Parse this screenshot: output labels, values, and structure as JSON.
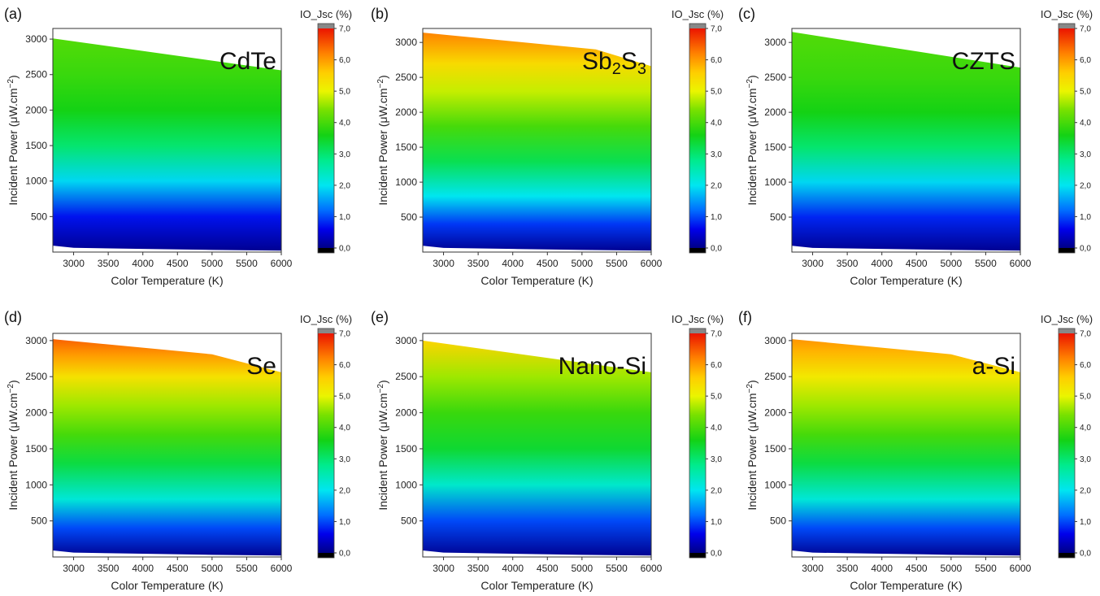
{
  "chart_data": [
    {
      "type": "heatmap",
      "panel": "(a)",
      "material": {
        "main": "CdTe",
        "parts": []
      },
      "xlabel": "Color Temperature (K)",
      "ylabel": "Incident Power (μW.cm",
      "ylabel_sup": "−2",
      "ylabel_end": ")",
      "xlim": [
        2700,
        6000
      ],
      "ylim": [
        0,
        3150
      ],
      "x_ticks": [
        3000,
        3500,
        4000,
        4500,
        5000,
        5500,
        6000
      ],
      "y_ticks": [
        500,
        1000,
        1500,
        2000,
        2500,
        3000
      ],
      "upper_boundary": [
        [
          2700,
          3010
        ],
        [
          6000,
          2560
        ]
      ],
      "lower_boundary": [
        [
          2700,
          90
        ],
        [
          3000,
          60
        ],
        [
          4000,
          45
        ],
        [
          5000,
          30
        ],
        [
          6000,
          20
        ]
      ],
      "gradient": [
        [
          0,
          0.05
        ],
        [
          500,
          0.7
        ],
        [
          1000,
          1.9
        ],
        [
          1500,
          3.0
        ],
        [
          2000,
          3.6
        ],
        [
          2500,
          3.9
        ],
        [
          3000,
          4.1
        ]
      ],
      "colorbar": {
        "title": "IO_Jsc (%)",
        "range": [
          0,
          7
        ],
        "ticks": [
          "0,0",
          "1,0",
          "2,0",
          "3,0",
          "4,0",
          "5,0",
          "6,0",
          "7,0"
        ]
      }
    },
    {
      "type": "heatmap",
      "panel": "(b)",
      "material": {
        "main": "Sb",
        "parts": [
          [
            "2",
            "sub"
          ],
          [
            "S",
            "norm"
          ],
          [
            "3",
            "sub"
          ]
        ]
      },
      "xlabel": "Color Temperature (K)",
      "ylabel": "Incident Power (μW.cm",
      "ylabel_sup": "−2",
      "ylabel_end": ")",
      "xlim": [
        2700,
        6000
      ],
      "ylim": [
        0,
        3200
      ],
      "x_ticks": [
        3000,
        3500,
        4000,
        4500,
        5000,
        5500,
        6000
      ],
      "y_ticks": [
        500,
        1000,
        1500,
        2000,
        2500,
        3000
      ],
      "upper_boundary": [
        [
          2700,
          3140
        ],
        [
          5200,
          2900
        ],
        [
          6000,
          2660
        ]
      ],
      "lower_boundary": [
        [
          2700,
          90
        ],
        [
          3000,
          60
        ],
        [
          4000,
          45
        ],
        [
          5000,
          30
        ],
        [
          6000,
          20
        ]
      ],
      "gradient": [
        [
          0,
          0.05
        ],
        [
          400,
          0.9
        ],
        [
          800,
          2.0
        ],
        [
          1300,
          3.2
        ],
        [
          1800,
          4.0
        ],
        [
          2300,
          4.8
        ],
        [
          2700,
          5.4
        ],
        [
          3150,
          6.2
        ]
      ],
      "colorbar": {
        "title": "IO_Jsc (%)",
        "range": [
          0,
          7
        ],
        "ticks": [
          "0,0",
          "1,0",
          "2,0",
          "3,0",
          "4,0",
          "5,0",
          "6,0",
          "7,0"
        ]
      }
    },
    {
      "type": "heatmap",
      "panel": "(c)",
      "material": {
        "main": "CZTS",
        "parts": []
      },
      "xlabel": "Color Temperature (K)",
      "ylabel": "Incident Power (μW.cm",
      "ylabel_sup": "−2",
      "ylabel_end": ")",
      "xlim": [
        2700,
        6000
      ],
      "ylim": [
        0,
        3200
      ],
      "x_ticks": [
        3000,
        3500,
        4000,
        4500,
        5000,
        5500,
        6000
      ],
      "y_ticks": [
        500,
        1000,
        1500,
        2000,
        2500,
        3000
      ],
      "upper_boundary": [
        [
          2700,
          3150
        ],
        [
          6000,
          2640
        ]
      ],
      "lower_boundary": [
        [
          2700,
          90
        ],
        [
          3000,
          60
        ],
        [
          4000,
          45
        ],
        [
          5000,
          30
        ],
        [
          6000,
          20
        ]
      ],
      "gradient": [
        [
          0,
          0.05
        ],
        [
          500,
          0.8
        ],
        [
          1000,
          1.9
        ],
        [
          1500,
          3.0
        ],
        [
          2000,
          3.6
        ],
        [
          2500,
          3.9
        ],
        [
          3150,
          4.1
        ]
      ],
      "colorbar": {
        "title": "IO_Jsc (%)",
        "range": [
          0,
          7
        ],
        "ticks": [
          "0,0",
          "1,0",
          "2,0",
          "3,0",
          "4,0",
          "5,0",
          "6,0",
          "7,0"
        ]
      }
    },
    {
      "type": "heatmap",
      "panel": "(d)",
      "material": {
        "main": "Se",
        "parts": []
      },
      "xlabel": "Color Temperature (K)",
      "ylabel": "Incident Power (μW.cm",
      "ylabel_sup": "−2",
      "ylabel_end": ")",
      "xlim": [
        2700,
        6000
      ],
      "ylim": [
        0,
        3100
      ],
      "x_ticks": [
        3000,
        3500,
        4000,
        4500,
        5000,
        5500,
        6000
      ],
      "y_ticks": [
        500,
        1000,
        1500,
        2000,
        2500,
        3000
      ],
      "upper_boundary": [
        [
          2700,
          3020
        ],
        [
          5000,
          2810
        ],
        [
          6000,
          2560
        ]
      ],
      "lower_boundary": [
        [
          2700,
          90
        ],
        [
          3000,
          60
        ],
        [
          4000,
          45
        ],
        [
          5000,
          30
        ],
        [
          6000,
          20
        ]
      ],
      "gradient": [
        [
          0,
          0.05
        ],
        [
          400,
          1.0
        ],
        [
          800,
          2.2
        ],
        [
          1300,
          3.3
        ],
        [
          1700,
          4.0
        ],
        [
          2100,
          4.6
        ],
        [
          2500,
          5.3
        ],
        [
          2800,
          6.0
        ],
        [
          3050,
          6.5
        ]
      ],
      "colorbar": {
        "title": "IO_Jsc (%)",
        "range": [
          0,
          7
        ],
        "ticks": [
          "0,0",
          "1,0",
          "2,0",
          "3,0",
          "4,0",
          "5,0",
          "6,0",
          "7,0"
        ]
      }
    },
    {
      "type": "heatmap",
      "panel": "(e)",
      "material": {
        "main": "Nano-Si",
        "parts": []
      },
      "xlabel": "Color Temperature (K)",
      "ylabel": "Incident Power (μW.cm",
      "ylabel_sup": "−2",
      "ylabel_end": ")",
      "xlim": [
        2700,
        6000
      ],
      "ylim": [
        0,
        3100
      ],
      "x_ticks": [
        3000,
        3500,
        4000,
        4500,
        5000,
        5500,
        6000
      ],
      "y_ticks": [
        500,
        1000,
        1500,
        2000,
        2500,
        3000
      ],
      "upper_boundary": [
        [
          2700,
          3000
        ],
        [
          6000,
          2560
        ]
      ],
      "lower_boundary": [
        [
          2700,
          90
        ],
        [
          3000,
          60
        ],
        [
          4000,
          45
        ],
        [
          5000,
          30
        ],
        [
          6000,
          20
        ]
      ],
      "gradient": [
        [
          0,
          0.05
        ],
        [
          500,
          1.0
        ],
        [
          1000,
          2.3
        ],
        [
          1500,
          3.4
        ],
        [
          2000,
          3.9
        ],
        [
          2500,
          4.6
        ],
        [
          3000,
          5.5
        ]
      ],
      "colorbar": {
        "title": "IO_Jsc (%)",
        "range": [
          0,
          7
        ],
        "ticks": [
          "0,0",
          "1,0",
          "2,0",
          "3,0",
          "4,0",
          "5,0",
          "6,0",
          "7,0"
        ]
      }
    },
    {
      "type": "heatmap",
      "panel": "(f)",
      "material": {
        "main": "a-Si",
        "parts": []
      },
      "xlabel": "Color Temperature (K)",
      "ylabel": "Incident Power (μW.cm",
      "ylabel_sup": "−2",
      "ylabel_end": ")",
      "xlim": [
        2700,
        6000
      ],
      "ylim": [
        0,
        3100
      ],
      "x_ticks": [
        3000,
        3500,
        4000,
        4500,
        5000,
        5500,
        6000
      ],
      "y_ticks": [
        500,
        1000,
        1500,
        2000,
        2500,
        3000
      ],
      "upper_boundary": [
        [
          2700,
          3020
        ],
        [
          5000,
          2810
        ],
        [
          6000,
          2560
        ]
      ],
      "lower_boundary": [
        [
          2700,
          90
        ],
        [
          3000,
          60
        ],
        [
          4000,
          45
        ],
        [
          5000,
          30
        ],
        [
          6000,
          20
        ]
      ],
      "gradient": [
        [
          0,
          0.05
        ],
        [
          400,
          1.0
        ],
        [
          800,
          2.2
        ],
        [
          1300,
          3.3
        ],
        [
          1700,
          4.0
        ],
        [
          2100,
          4.6
        ],
        [
          2500,
          5.2
        ],
        [
          2850,
          5.8
        ],
        [
          3050,
          6.1
        ]
      ],
      "colorbar": {
        "title": "IO_Jsc (%)",
        "range": [
          0,
          7
        ],
        "ticks": [
          "0,0",
          "1,0",
          "2,0",
          "3,0",
          "4,0",
          "5,0",
          "6,0",
          "7,0"
        ]
      }
    }
  ]
}
